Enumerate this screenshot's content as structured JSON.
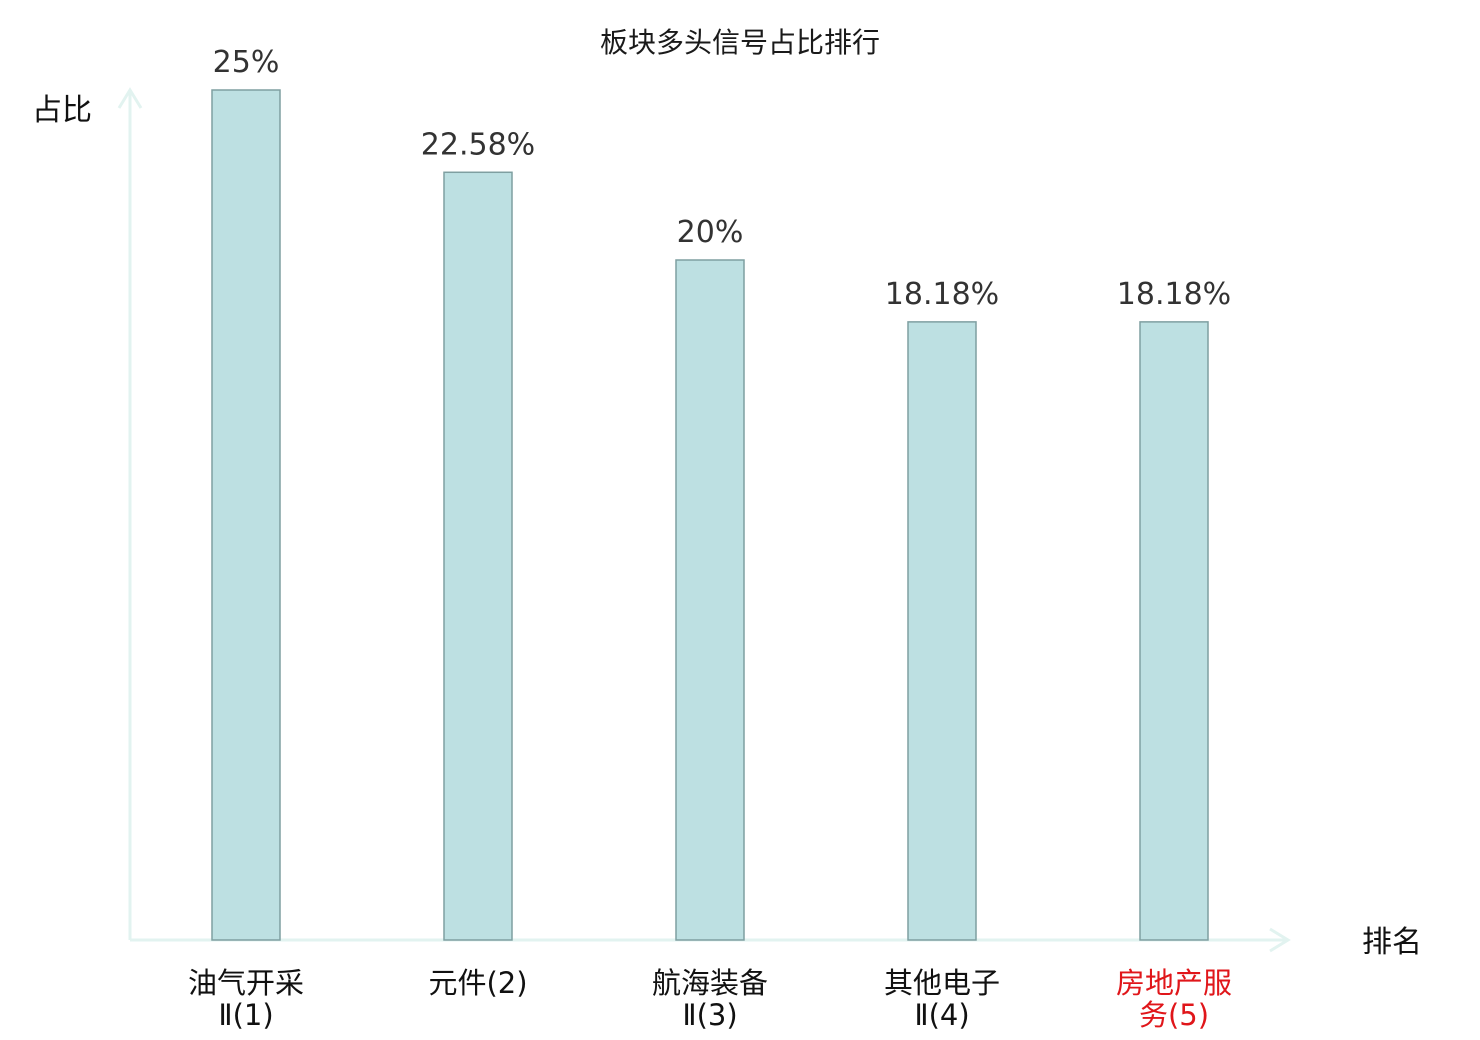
{
  "chart_data": {
    "type": "bar",
    "title": "板块多头信号占比排行",
    "xlabel": "排名",
    "ylabel": "占比",
    "ylim": [
      0,
      25
    ],
    "grid": false,
    "categories": [
      [
        "油气开采",
        "Ⅱ(1)"
      ],
      [
        "元件(2)"
      ],
      [
        "航海装备",
        "Ⅱ(3)"
      ],
      [
        "其他电子",
        "Ⅱ(4)"
      ],
      [
        "房地产服",
        "务(5)"
      ]
    ],
    "values": [
      25,
      22.58,
      20,
      18.18,
      18.18
    ],
    "value_labels": [
      "25%",
      "22.58%",
      "20%",
      "18.18%",
      "18.18%"
    ],
    "colors": {
      "bar_fill": "#bde0e2",
      "bar_stroke": "#7f9fa1",
      "axis": "#e2f3f0",
      "label_default": "#111111",
      "label_highlight": "#e0161a"
    },
    "highlight_index": 4
  }
}
